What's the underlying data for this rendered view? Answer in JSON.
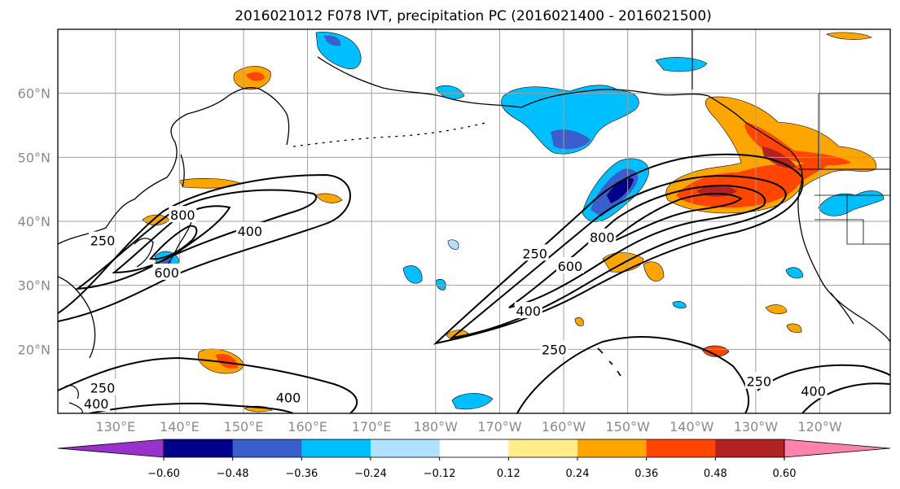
{
  "title": "2016021012 F078 IVT, precipitation PC (2016021400 - 2016021500)",
  "chart_data": {
    "type": "map",
    "projection": "lat-lon",
    "xlim_deg_east": [
      121,
      251
    ],
    "ylim_deg_north": [
      10,
      70
    ],
    "grid": true,
    "lon_ticks": [
      130,
      140,
      150,
      160,
      170,
      180,
      190,
      200,
      210,
      220,
      230,
      240
    ],
    "lon_tick_labels": [
      "130°E",
      "140°E",
      "150°E",
      "160°E",
      "170°E",
      "180°W",
      "170°W",
      "160°W",
      "150°W",
      "140°W",
      "130°W",
      "120°W"
    ],
    "lat_ticks": [
      20,
      30,
      40,
      50,
      60
    ],
    "lat_tick_labels": [
      "20°N",
      "30°N",
      "40°N",
      "50°N",
      "60°N"
    ],
    "ivt_contour_labels": [
      {
        "text": "250",
        "lon": 128,
        "lat": 37
      },
      {
        "text": "400",
        "lon": 151,
        "lat": 38.5
      },
      {
        "text": "600",
        "lon": 138,
        "lat": 32
      },
      {
        "text": "800",
        "lon": 140.5,
        "lat": 41
      },
      {
        "text": "250",
        "lon": 195.5,
        "lat": 35
      },
      {
        "text": "400",
        "lon": 194.5,
        "lat": 26
      },
      {
        "text": "600",
        "lon": 201,
        "lat": 33
      },
      {
        "text": "800",
        "lon": 206,
        "lat": 37.5
      },
      {
        "text": "250",
        "lon": 198.5,
        "lat": 20
      },
      {
        "text": "400",
        "lon": 157,
        "lat": 12.5
      },
      {
        "text": "400",
        "lon": 127,
        "lat": 11.5
      },
      {
        "text": "250",
        "lon": 128,
        "lat": 14
      },
      {
        "text": "250",
        "lon": 230.5,
        "lat": 15
      },
      {
        "text": "400",
        "lon": 239,
        "lat": 13.5
      }
    ],
    "colorbar": {
      "boundaries": [
        -0.6,
        -0.48,
        -0.36,
        -0.24,
        -0.12,
        0.12,
        0.24,
        0.36,
        0.48,
        0.6
      ],
      "tick_labels": [
        "−0.60",
        "−0.48",
        "−0.36",
        "−0.24",
        "−0.12",
        "0.12",
        "0.24",
        "0.36",
        "0.48",
        "0.60"
      ],
      "colors": [
        "#9932cc",
        "#00008b",
        "#3a5fcd",
        "#00bfff",
        "#b0e2ff",
        "#ffffff",
        "#ffec8b",
        "#ffa500",
        "#ff4500",
        "#b22222",
        "#ff82ab"
      ],
      "extend": "both"
    }
  }
}
